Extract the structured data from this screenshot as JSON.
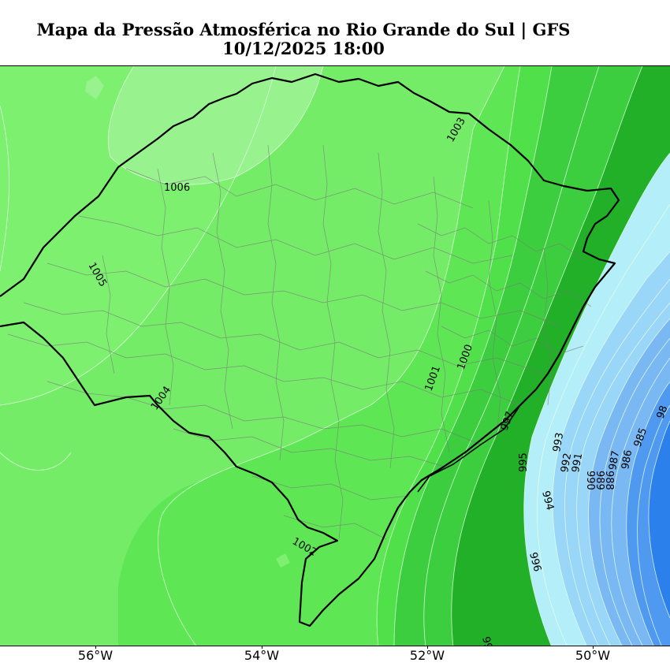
{
  "title": {
    "line1": "Mapa da Pressão Atmosférica no Rio Grande do Sul | GFS",
    "line2": "10/12/2025 18:00"
  },
  "x_axis": {
    "ticks": [
      "56°W",
      "54°W",
      "52°W",
      "50°W"
    ]
  },
  "colors": {
    "fill_1006": "#98f28e",
    "fill_1005": "#7ef070",
    "fill_1004": "#74ec68",
    "fill_1003": "#5fe655",
    "fill_1001": "#4fe04a",
    "fill_1000": "#3cce3e",
    "fill_997": "#22b028",
    "fill_995": "#b4eef8",
    "fill_993": "#9ad6f8",
    "fill_990": "#7ab8f4",
    "fill_987": "#4f9af0",
    "fill_985": "#2b80ec",
    "state_border": "#000000",
    "municipal_lines": "#7a7a7a",
    "contour_lines": "#e8ffe8"
  },
  "contour_labels": [
    "1006",
    "1005",
    "1004",
    "1003",
    "1002",
    "1001",
    "1000",
    "997",
    "996",
    "995",
    "994",
    "993",
    "992",
    "991",
    "990",
    "989",
    "988",
    "987",
    "986",
    "985",
    "98",
    "99"
  ]
}
